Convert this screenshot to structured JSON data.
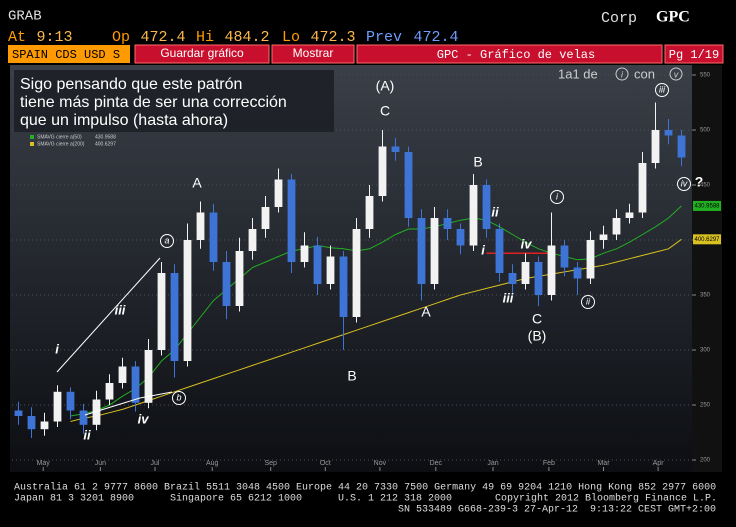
{
  "header": {
    "code": "GRAB",
    "market": "Corp",
    "ticker": "GPC",
    "quote": [
      {
        "label": "At",
        "value": "9:13"
      },
      {
        "label": "Op",
        "value": 472.4
      },
      {
        "label": "Hi",
        "value": 484.2
      },
      {
        "label": "Lo",
        "value": 472.3
      },
      {
        "label": "Prev",
        "value": 472.4
      }
    ]
  },
  "toolbar": {
    "security": "SPAIN CDS USD S",
    "buttons": [
      "Guardar gráfico",
      "Mostrar"
    ],
    "title": "GPC - Gráfico de velas",
    "page": "Pg 1/19"
  },
  "comment": [
    "Sigo pensando que este patrón",
    "tiene más pinta de ser una corrección",
    "que un impulso (hasta ahora)"
  ],
  "range_note": [
    "1a1 de",
    "i",
    "con",
    "v"
  ],
  "chart_data": {
    "type": "candlestick",
    "x": [
      0,
      1,
      2,
      3,
      4,
      5,
      6,
      7,
      8,
      9,
      10,
      11,
      12,
      13,
      14,
      15,
      16,
      17,
      18,
      19,
      20,
      21,
      22,
      23,
      24,
      25,
      26,
      27,
      28,
      29,
      30,
      31,
      32,
      33,
      34,
      35,
      36,
      37,
      38,
      39,
      40,
      41,
      42,
      43,
      44,
      45,
      46,
      47,
      48,
      49,
      50,
      51
    ],
    "open": [
      245,
      240,
      228,
      235,
      262,
      245,
      232,
      255,
      270,
      285,
      252,
      300,
      370,
      290,
      400,
      425,
      380,
      340,
      390,
      410,
      430,
      455,
      380,
      395,
      360,
      385,
      330,
      410,
      440,
      485,
      480,
      420,
      360,
      420,
      410,
      395,
      450,
      410,
      370,
      360,
      380,
      350,
      395,
      375,
      365,
      400,
      405,
      420,
      425,
      470,
      500,
      495
    ],
    "high": [
      253,
      248,
      243,
      268,
      266,
      251,
      263,
      278,
      293,
      290,
      310,
      380,
      378,
      415,
      435,
      433,
      390,
      402,
      420,
      440,
      465,
      460,
      407,
      403,
      395,
      390,
      420,
      450,
      500,
      493,
      485,
      428,
      430,
      428,
      415,
      460,
      455,
      415,
      378,
      388,
      385,
      425,
      400,
      380,
      408,
      413,
      428,
      433,
      480,
      525,
      510,
      500
    ],
    "low": [
      232,
      220,
      222,
      230,
      237,
      224,
      227,
      250,
      265,
      244,
      247,
      295,
      275,
      285,
      392,
      372,
      328,
      335,
      382,
      402,
      425,
      370,
      375,
      350,
      355,
      300,
      325,
      402,
      435,
      472,
      412,
      345,
      355,
      400,
      387,
      390,
      402,
      362,
      352,
      355,
      340,
      345,
      367,
      350,
      360,
      392,
      400,
      415,
      420,
      465,
      487,
      467
    ],
    "close": [
      240,
      228,
      235,
      262,
      245,
      232,
      255,
      270,
      285,
      252,
      300,
      370,
      290,
      400,
      425,
      380,
      340,
      390,
      410,
      430,
      455,
      380,
      395,
      360,
      385,
      330,
      410,
      440,
      485,
      480,
      420,
      360,
      420,
      410,
      395,
      450,
      410,
      370,
      360,
      380,
      350,
      395,
      375,
      365,
      400,
      405,
      420,
      425,
      470,
      500,
      495,
      475
    ],
    "colors": {
      "up": "#f2f2f2",
      "down": "#3d74d6"
    },
    "series": [
      {
        "name": "SMAVG cierre a(50)",
        "color": "#22b022",
        "values": [
          null,
          null,
          null,
          null,
          240,
          242,
          245,
          250,
          258,
          265,
          275,
          290,
          300,
          315,
          330,
          345,
          355,
          365,
          375,
          380,
          385,
          390,
          392,
          395,
          393,
          392,
          390,
          392,
          398,
          405,
          410,
          410,
          412,
          415,
          418,
          420,
          418,
          412,
          405,
          398,
          392,
          388,
          385,
          382,
          383,
          388,
          392,
          398,
          405,
          412,
          420,
          430.9588
        ]
      },
      {
        "name": "SMAVG cierre a(200)",
        "color": "#d8c020",
        "values": [
          null,
          null,
          null,
          null,
          235,
          238,
          240,
          243,
          246,
          250,
          254,
          258,
          262,
          266,
          270,
          274,
          278,
          282,
          286,
          290,
          294,
          298,
          302,
          306,
          310,
          314,
          318,
          322,
          326,
          330,
          334,
          338,
          342,
          346,
          350,
          353,
          356,
          359,
          362,
          365,
          367,
          369,
          371,
          373,
          375,
          377,
          380,
          383,
          386,
          389,
          392,
          400.6297
        ]
      }
    ],
    "reference_line": {
      "value": 388,
      "color": "#e02020"
    },
    "xlim": [
      -0.5,
      51.5
    ],
    "xticks": [
      {
        "value": 1.9,
        "label": "May"
      },
      {
        "value": 6.3,
        "label": "Jun"
      },
      {
        "value": 10.5,
        "label": "Jul"
      },
      {
        "value": 14.9,
        "label": "Aug"
      },
      {
        "value": 19.4,
        "label": "Sep"
      },
      {
        "value": 23.6,
        "label": "Oct"
      },
      {
        "value": 27.8,
        "label": "Nov"
      },
      {
        "value": 32.1,
        "label": "Dec"
      },
      {
        "value": 36.5,
        "label": "Jan"
      },
      {
        "value": 40.8,
        "label": "Feb"
      },
      {
        "value": 45,
        "label": "Mar"
      },
      {
        "value": 49.2,
        "label": "Apr"
      }
    ],
    "ylim": [
      190,
      560
    ],
    "yticks": [
      200,
      250,
      300,
      350,
      400,
      450,
      500,
      550
    ],
    "grid": true,
    "annotations": [
      "(A)",
      "C",
      "A",
      "B",
      "ii",
      "i",
      "iv",
      "iii",
      "C",
      "(B)",
      "A",
      "B",
      "i",
      "ii",
      "iii",
      "iv",
      "a",
      "b",
      "i",
      "ii",
      "iii",
      "iv",
      "?"
    ]
  },
  "footer": {
    "line1": "Australia 61 2 9777 8600 Brazil 5511 3048 4500 Europe 44 20 7330 7500 Germany 49 69 9204 1210 Hong Kong 852 2977 6000",
    "line2": [
      "Japan 81 3 3201 8900",
      "Singapore 65 6212 1000",
      "U.S. 1 212 318 2000",
      "Copyright 2012 Bloomberg Finance L.P."
    ],
    "line3": "SN 533489 G668-239-3 27-Apr-12  9:13:22 CEST GMT+2:00"
  }
}
